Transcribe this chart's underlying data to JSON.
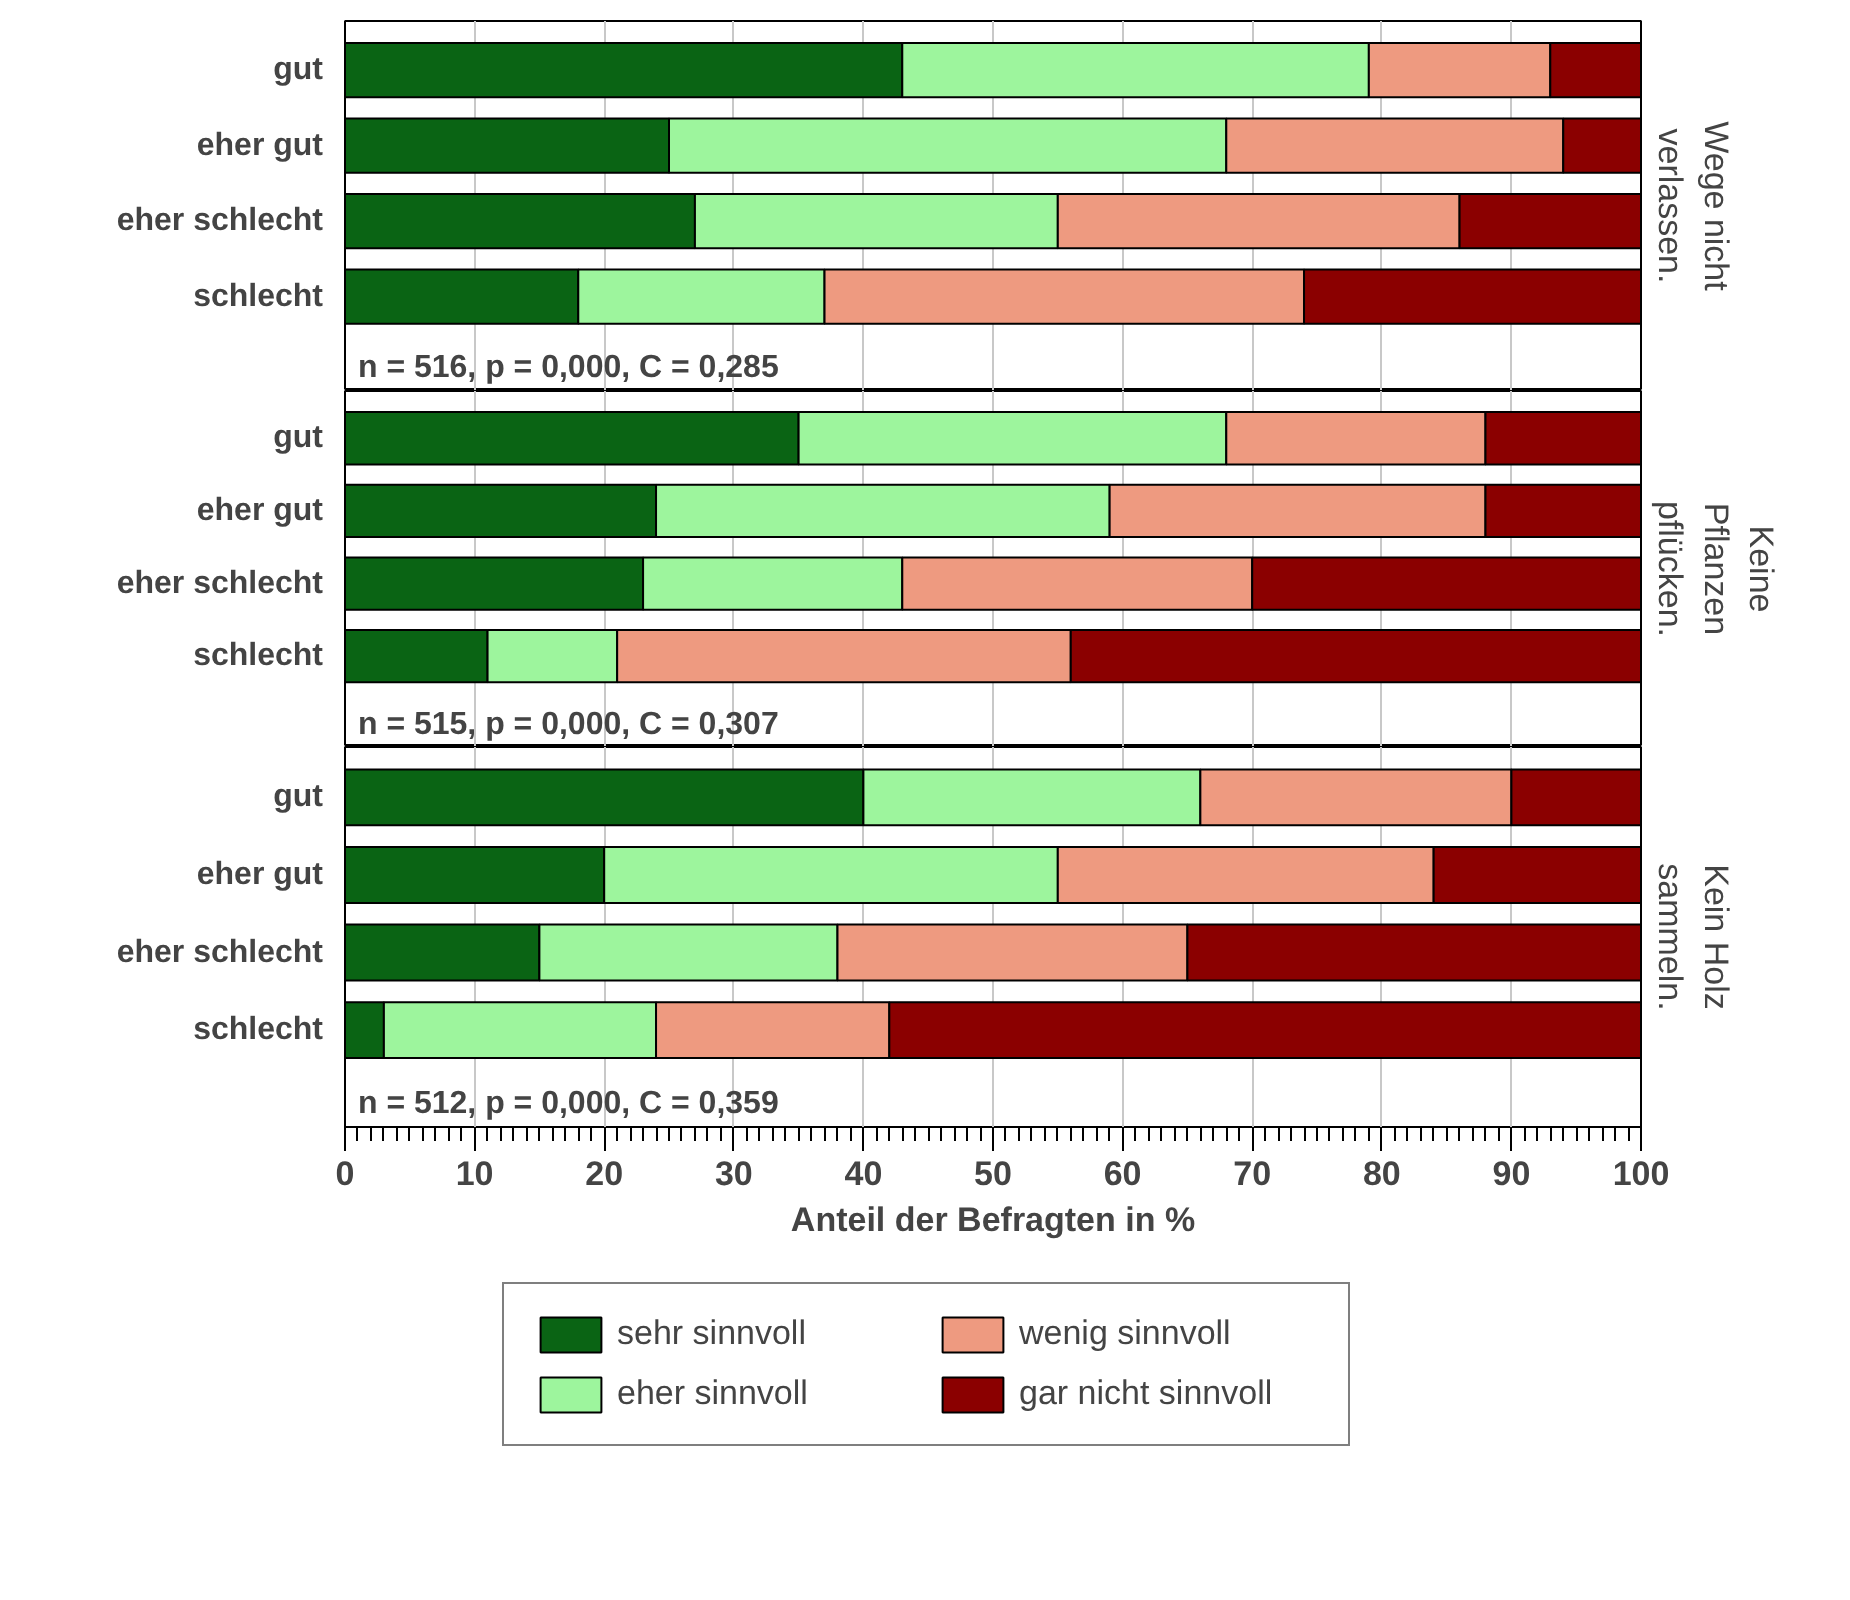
{
  "chart_data": [
    {
      "type": "bar",
      "orientation": "horizontal",
      "stacked": true,
      "categories": [
        "gut",
        "eher gut",
        "eher schlecht",
        "schlecht"
      ],
      "y2label": "Wege nicht\nverlassen.",
      "annotations": [
        "n = 516, p = 0,000, C = 0,285"
      ],
      "xlim": [
        0,
        100
      ],
      "xticks": [
        0,
        10,
        20,
        30,
        40,
        50,
        60,
        70,
        80,
        90,
        100
      ],
      "grid": "x",
      "tick_labels": "y",
      "series": [
        {
          "color": "#0a6414",
          "values": [
            43,
            25,
            27,
            18
          ]
        },
        {
          "color": "#9df59d",
          "values": [
            36,
            43,
            28,
            19
          ]
        },
        {
          "color": "#ee9a80",
          "values": [
            14,
            26,
            31,
            37
          ]
        },
        {
          "color": "#8b0000",
          "values": [
            7,
            6,
            14,
            26
          ]
        }
      ]
    },
    {
      "type": "bar",
      "orientation": "horizontal",
      "stacked": true,
      "categories": [
        "gut",
        "eher gut",
        "eher schlecht",
        "schlecht"
      ],
      "y2label": "Keine\nPflanzen\npflücken.",
      "annotations": [
        "n = 515, p = 0,000, C = 0,307"
      ],
      "xlim": [
        0,
        100
      ],
      "xticks": [
        0,
        10,
        20,
        30,
        40,
        50,
        60,
        70,
        80,
        90,
        100
      ],
      "grid": "x",
      "tick_labels": "y",
      "series": [
        {
          "color": "#0a6414",
          "values": [
            35,
            24,
            23,
            11
          ]
        },
        {
          "color": "#9df59d",
          "values": [
            33,
            35,
            20,
            10
          ]
        },
        {
          "color": "#ee9a80",
          "values": [
            20,
            29,
            27,
            35
          ]
        },
        {
          "color": "#8b0000",
          "values": [
            12,
            12,
            30,
            44
          ]
        }
      ]
    },
    {
      "type": "bar",
      "orientation": "horizontal",
      "stacked": true,
      "categories": [
        "gut",
        "eher gut",
        "eher schlecht",
        "schlecht"
      ],
      "y2label": "Kein Holz\nsammeln.",
      "annotations": [
        "n = 512, p = 0,000, C = 0,359"
      ],
      "xlim": [
        0,
        100
      ],
      "xticks": [
        0,
        10,
        20,
        30,
        40,
        50,
        60,
        70,
        80,
        90,
        100
      ],
      "grid": "x",
      "xlabel": "Anteil der Befragten in %",
      "legend": "bottom",
      "series": [
        {
          "name": "sehr sinnvoll",
          "color": "#0a6414",
          "values": [
            40,
            20,
            15,
            3
          ]
        },
        {
          "name": "eher sinnvoll",
          "color": "#9df59d",
          "values": [
            26,
            35,
            23,
            21
          ]
        },
        {
          "name": "wenig sinnvoll",
          "color": "#ee9a80",
          "values": [
            24,
            29,
            27,
            18
          ]
        },
        {
          "name": "gar nicht sinnvoll",
          "color": "#8b0000",
          "values": [
            10,
            16,
            35,
            58
          ]
        }
      ]
    }
  ]
}
